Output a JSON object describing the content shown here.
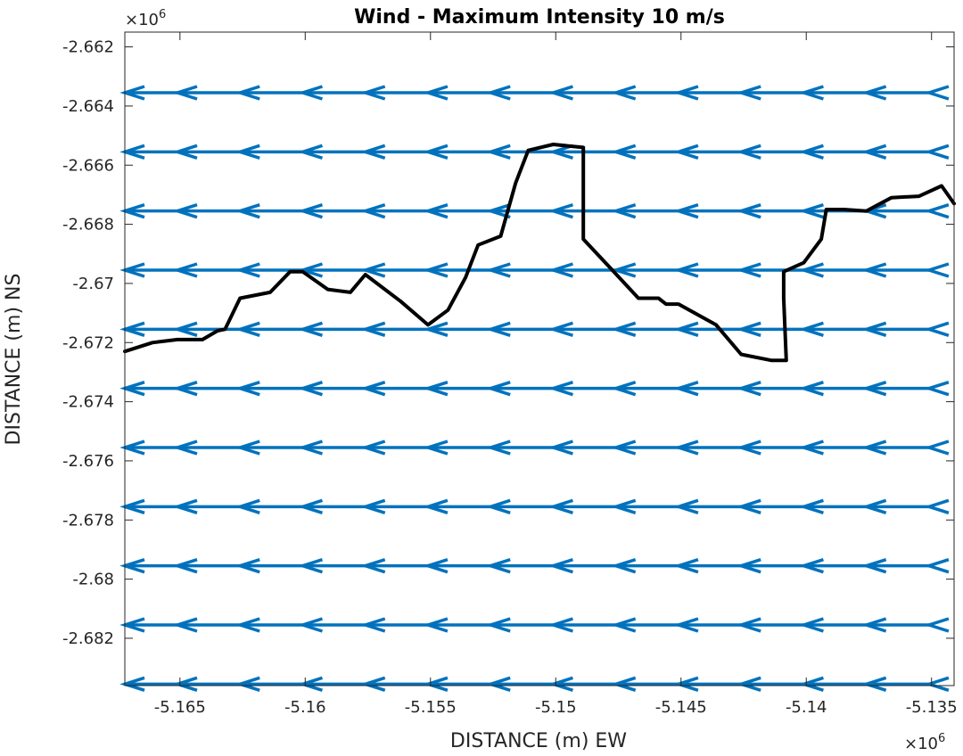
{
  "chart_data": {
    "type": "line",
    "title": "Wind - Maximum Intensity 10 m/s",
    "xlabel": "DISTANCE (m) EW",
    "ylabel": "DISTANCE (m) NS",
    "x_exponent": "×10",
    "x_exponent_power": "6",
    "y_exponent": "×10",
    "y_exponent_power": "6",
    "xlim": [
      -5.1672,
      -5.1341
    ],
    "ylim": [
      -2.6836,
      -2.6615
    ],
    "x_ticks": [
      -5.165,
      -5.16,
      -5.155,
      -5.15,
      -5.145,
      -5.14,
      -5.135
    ],
    "x_tick_labels": [
      "-5.165",
      "-5.16",
      "-5.155",
      "-5.15",
      "-5.145",
      "-5.14",
      "-5.135"
    ],
    "y_ticks": [
      -2.662,
      -2.664,
      -2.666,
      -2.668,
      -2.67,
      -2.672,
      -2.674,
      -2.676,
      -2.678,
      -2.68,
      -2.682
    ],
    "y_tick_labels": [
      "-2.662",
      "-2.664",
      "-2.666",
      "-2.668",
      "-2.67",
      "-2.672",
      "-2.674",
      "-2.676",
      "-2.678",
      "-2.68",
      "-2.682"
    ],
    "grid": false,
    "series": [
      {
        "type": "quiver",
        "color": "#0072BD",
        "direction": "west",
        "arrow_x": [
          -5.1672,
          -5.1651,
          -5.1626,
          -5.1601,
          -5.1576,
          -5.1551,
          -5.1526,
          -5.1501,
          -5.1476,
          -5.1451,
          -5.1426,
          -5.1401,
          -5.1376,
          -5.1351
        ],
        "rows_y": [
          -2.66355,
          -2.66555,
          -2.66755,
          -2.66955,
          -2.67155,
          -2.67355,
          -2.67555,
          -2.67755,
          -2.67955,
          -2.68155,
          -2.68355
        ],
        "shaft_x_start": -5.1672,
        "shaft_x_end": -5.1351
      },
      {
        "type": "line",
        "color": "#000000",
        "x": [
          -5.1672,
          -5.1661,
          -5.1651,
          -5.1641,
          -5.1635,
          -5.1632,
          -5.1626,
          -5.1614,
          -5.1606,
          -5.1601,
          -5.1591,
          -5.1582,
          -5.1576,
          -5.1562,
          -5.1551,
          -5.1543,
          -5.1536,
          -5.1531,
          -5.1522,
          -5.1516,
          -5.1511,
          -5.1501,
          -5.1489,
          -5.1489,
          -5.1489,
          -5.1478,
          -5.1467,
          -5.1459,
          -5.1456,
          -5.1451,
          -5.1436,
          -5.1426,
          -5.1414,
          -5.1408,
          -5.1409,
          -5.1409,
          -5.1401,
          -5.1394,
          -5.1392,
          -5.1385,
          -5.1376,
          -5.1366,
          -5.1355,
          -5.1346,
          -5.1341
        ],
        "y": [
          -2.6723,
          -2.672,
          -2.6719,
          -2.6719,
          -2.6716,
          -2.67155,
          -2.6705,
          -2.6703,
          -2.6696,
          -2.6696,
          -2.6702,
          -2.6703,
          -2.6697,
          -2.6706,
          -2.6714,
          -2.6709,
          -2.6698,
          -2.6687,
          -2.6684,
          -2.6666,
          -2.6655,
          -2.6653,
          -2.6654,
          -2.6665,
          -2.6685,
          -2.6695,
          -2.6705,
          -2.6705,
          -2.6707,
          -2.6707,
          -2.6714,
          -2.6724,
          -2.6726,
          -2.6726,
          -2.6705,
          -2.6696,
          -2.6693,
          -2.6685,
          -2.6675,
          -2.6675,
          -2.66755,
          -2.6671,
          -2.66705,
          -2.6667,
          -2.6673
        ]
      }
    ]
  }
}
